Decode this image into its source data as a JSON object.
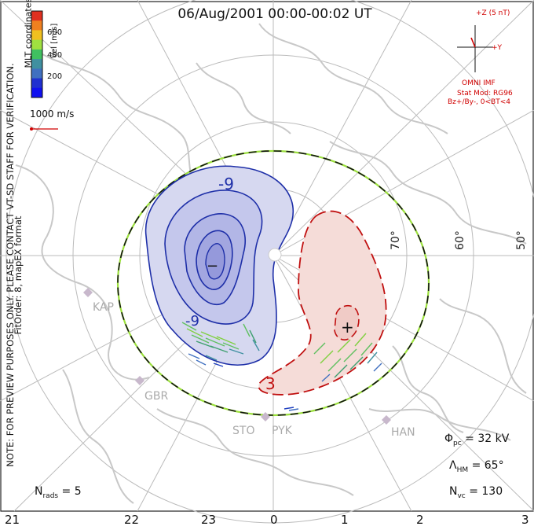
{
  "title": "06/Aug/2001 00:00-00:02 UT",
  "side_note_1": "NOTE: FOR PREVIEW PURPOSES ONLY. PLEASE CONTACT VT-SD STAFF FOR VERIFICATION.",
  "side_note_2": "FitOrder: 8, mapEX format",
  "coords_label": "MLT coordinates",
  "colorbar": {
    "title": "Vel [m/s]",
    "ticks": [
      "600",
      "400",
      "200"
    ],
    "colors": [
      "#e03020",
      "#f08020",
      "#f0c020",
      "#a0e040",
      "#40c060",
      "#4090a0",
      "#4070c0",
      "#2030d0",
      "#1010f0"
    ]
  },
  "vector_scale": "1000 m/s",
  "imf": {
    "axis_z": "+Z (5 nT)",
    "axis_y": "+Y",
    "source": "OMNI IMF",
    "stat_mod": "Stat Mod: RG96",
    "condition": "Bz+/By-, 0<BT<4"
  },
  "stats": {
    "phi_pc_label": "Φ",
    "phi_pc_sub": "pc",
    "phi_pc_value": " = 32 kV",
    "lambda_label": "Λ",
    "lambda_sub": "HM",
    "lambda_value": " = 65°",
    "nvc_label": "N",
    "nvc_sub": "vc",
    "nvc_value": " = 130",
    "nrads_label": "N",
    "nrads_sub": "rads",
    "nrads_value": " = 5"
  },
  "mlt_ticks": [
    "21",
    "22",
    "23",
    "0",
    "1",
    "2",
    "3"
  ],
  "lat_labels": [
    "70°",
    "60°",
    "50°"
  ],
  "stations": [
    "KAP",
    "GBR",
    "STO",
    "PYK",
    "HAN"
  ],
  "contour_labels": {
    "neg": "-9",
    "neg2": "-9",
    "pos": "3",
    "min_marker": "−",
    "max_marker": "+"
  }
}
